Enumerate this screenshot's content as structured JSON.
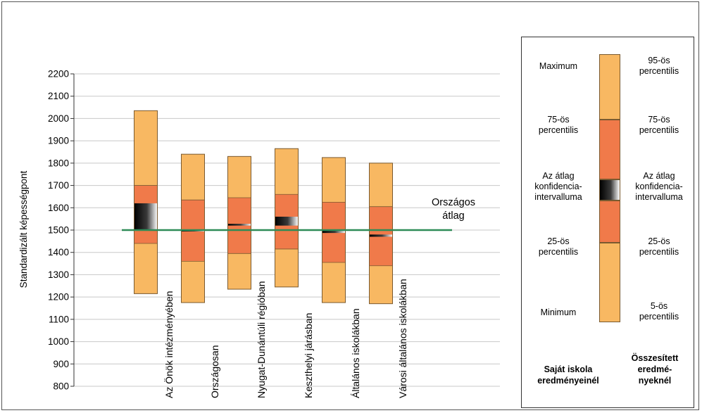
{
  "chart_data": {
    "type": "box",
    "ylabel": "Standardizált képességpont",
    "ylim": [
      800,
      2200
    ],
    "ytick_step": 100,
    "grid": "horizontal",
    "categories": [
      "Az Önök intézményében",
      "Országosan",
      "Nyugat-Dunántúli régióban",
      "Keszthelyi járásban",
      "Általános iskolákban",
      "Városi általános iskolákban"
    ],
    "boxes": [
      {
        "p5": 1215,
        "p25": 1440,
        "p75": 1700,
        "p95": 2035,
        "ci_low": 1500,
        "ci_high": 1620
      },
      {
        "p5": 1175,
        "p25": 1360,
        "p75": 1635,
        "p95": 1840,
        "ci_low": 1495,
        "ci_high": 1500
      },
      {
        "p5": 1235,
        "p25": 1395,
        "p75": 1645,
        "p95": 1830,
        "ci_low": 1520,
        "ci_high": 1528
      },
      {
        "p5": 1245,
        "p25": 1415,
        "p75": 1660,
        "p95": 1865,
        "ci_low": 1520,
        "ci_high": 1560
      },
      {
        "p5": 1175,
        "p25": 1355,
        "p75": 1625,
        "p95": 1825,
        "ci_low": 1487,
        "ci_high": 1497
      },
      {
        "p5": 1170,
        "p25": 1340,
        "p75": 1605,
        "p95": 1800,
        "ci_low": 1470,
        "ci_high": 1480
      }
    ],
    "reference_line": {
      "value": 1500,
      "label_line1": "Országos",
      "label_line2": "átlag",
      "color": "#2e8b57"
    },
    "colors": {
      "outer": "#f8b862",
      "inner": "#f07a4a",
      "outline": "#7a5a30",
      "ci_dark": "#000000",
      "ci_light": "#ffffff",
      "grid": "#c8c8c8"
    }
  },
  "legend": {
    "left": [
      {
        "lines": [
          "Maximum"
        ]
      },
      {
        "lines": [
          "75-ös",
          "percentilis"
        ]
      },
      {
        "lines": [
          "Az átlag",
          "konfidencia-",
          "intervalluma"
        ]
      },
      {
        "lines": [
          "25-ös",
          "percentilis"
        ]
      },
      {
        "lines": [
          "Minimum"
        ]
      }
    ],
    "right": [
      {
        "lines": [
          "95-ös",
          "percentilis"
        ]
      },
      {
        "lines": [
          "75-ös",
          "percentilis"
        ]
      },
      {
        "lines": [
          "Az átlag",
          "konfidencia-",
          "intervalluma"
        ]
      },
      {
        "lines": [
          "25-ös",
          "percentilis"
        ]
      },
      {
        "lines": [
          "5-ös",
          "percentilis"
        ]
      }
    ],
    "footer_left": [
      "Saját iskola",
      "eredményeinél"
    ],
    "footer_right": [
      "Összesített",
      "eredmé-",
      "nyeknél"
    ]
  }
}
